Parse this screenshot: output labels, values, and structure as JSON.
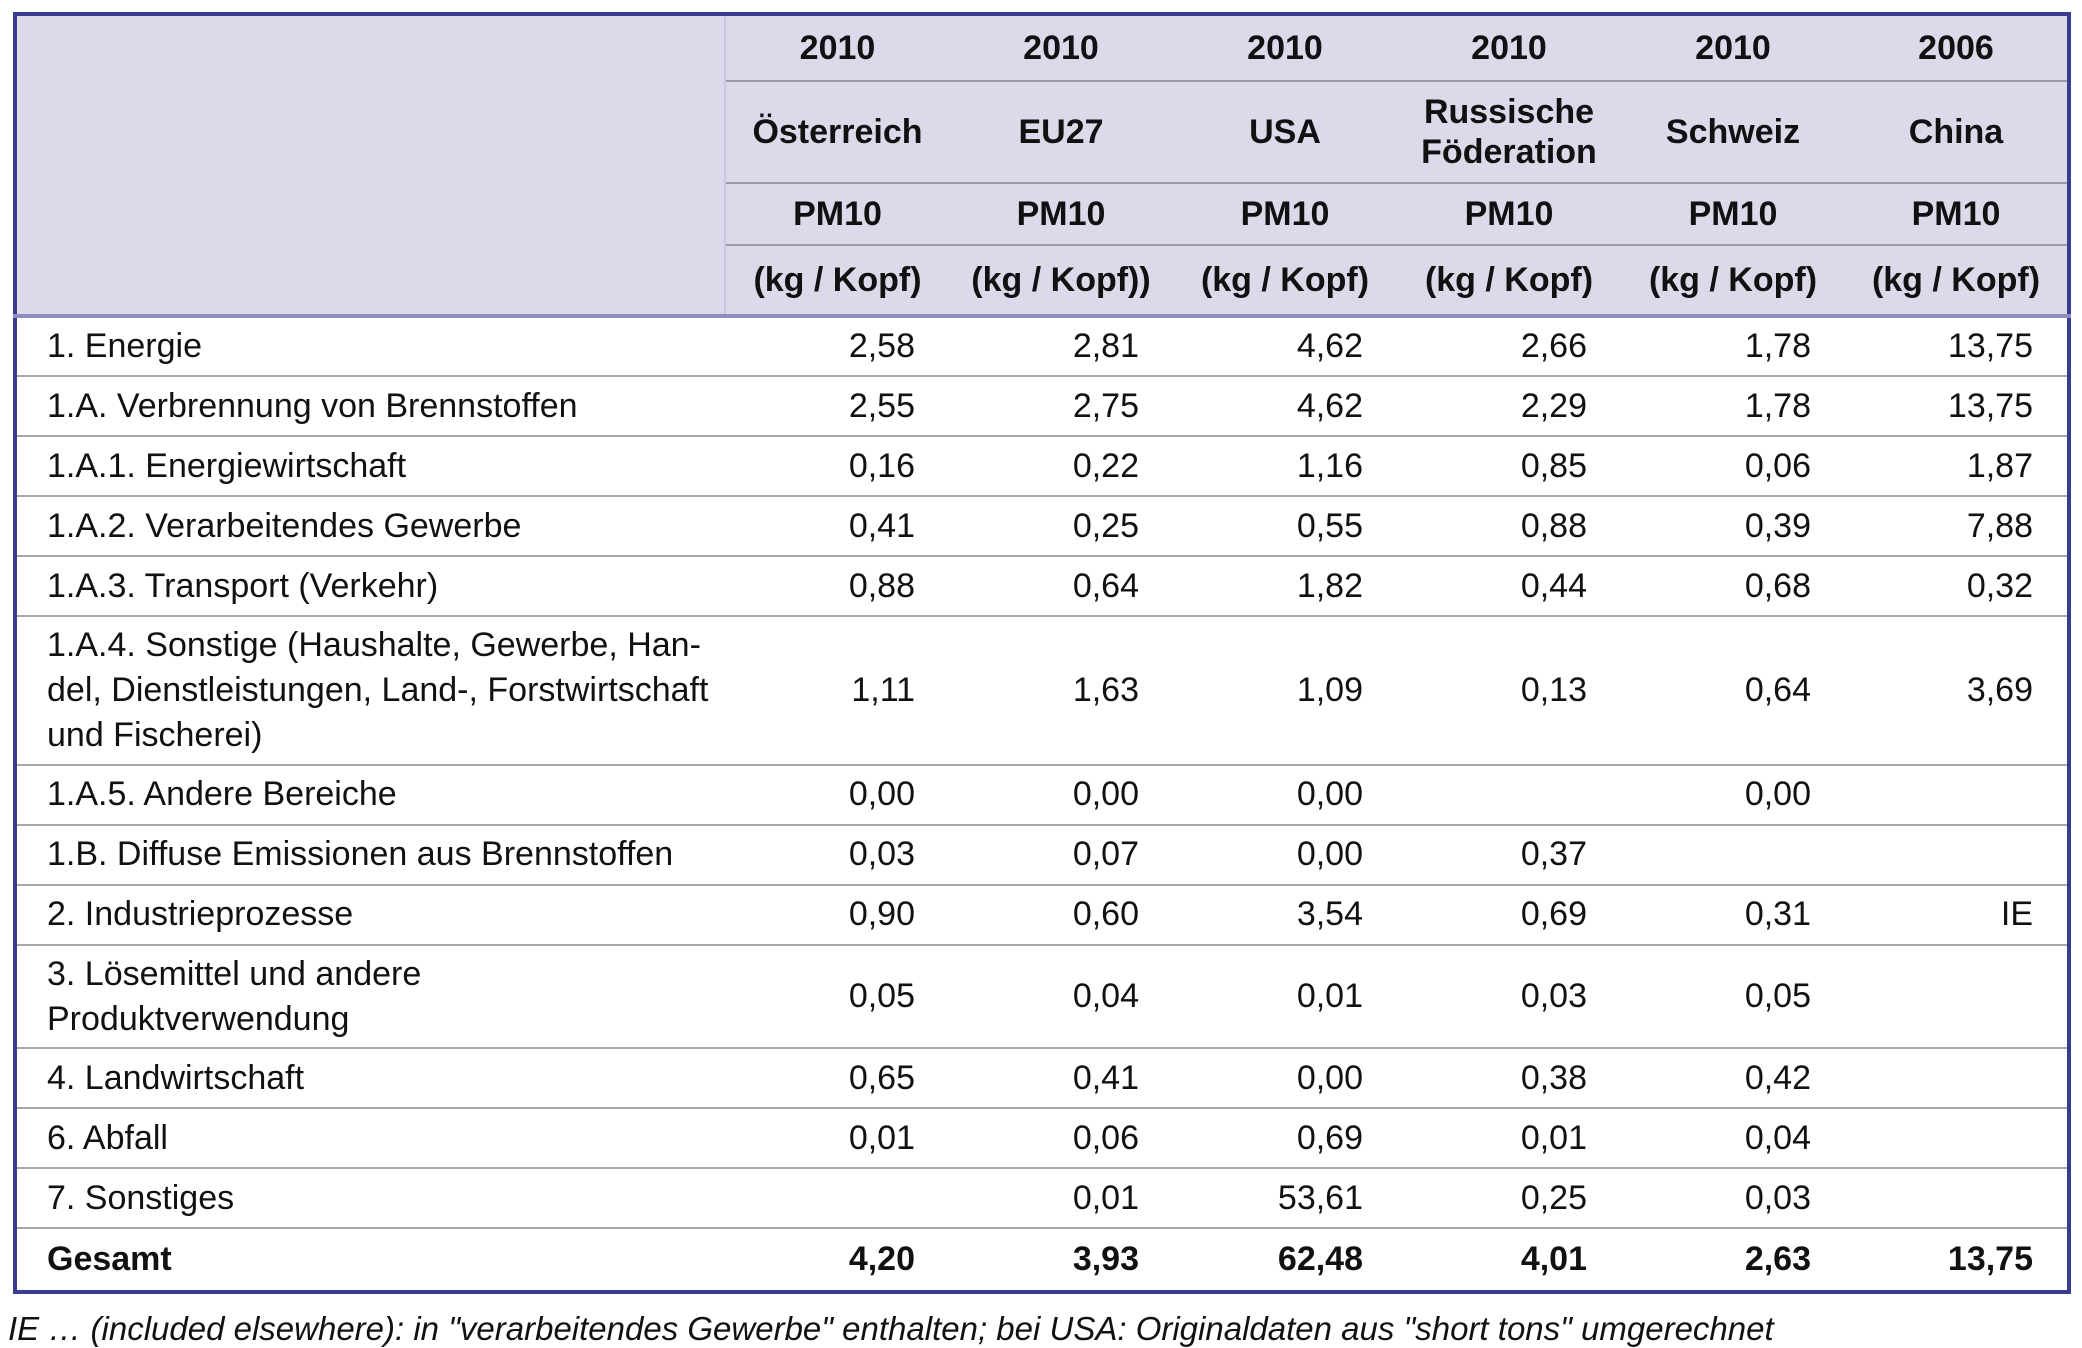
{
  "table": {
    "header": {
      "years": [
        "2010",
        "2010",
        "2010",
        "2010",
        "2010",
        "2006"
      ],
      "countries": [
        "Österreich",
        "EU27",
        "USA",
        "Russische Föderation",
        "Schweiz",
        "China"
      ],
      "pollutant": [
        "PM10",
        "PM10",
        "PM10",
        "PM10",
        "PM10",
        "PM10"
      ],
      "units": [
        "(kg / Kopf)",
        "(kg / Kopf))",
        "(kg / Kopf)",
        "(kg / Kopf)",
        "(kg / Kopf)",
        "(kg / Kopf)"
      ]
    },
    "rows": [
      {
        "label": "1. Energie",
        "values": [
          "2,58",
          "2,81",
          "4,62",
          "2,66",
          "1,78",
          "13,75"
        ]
      },
      {
        "label": "1.A. Verbrennung von Brennstoffen",
        "values": [
          "2,55",
          "2,75",
          "4,62",
          "2,29",
          "1,78",
          "13,75"
        ]
      },
      {
        "label": "1.A.1. Energiewirtschaft",
        "values": [
          "0,16",
          "0,22",
          "1,16",
          "0,85",
          "0,06",
          "1,87"
        ]
      },
      {
        "label": "1.A.2. Verarbeitendes Gewerbe",
        "values": [
          "0,41",
          "0,25",
          "0,55",
          "0,88",
          "0,39",
          "7,88"
        ]
      },
      {
        "label": "1.A.3. Transport (Verkehr)",
        "values": [
          "0,88",
          "0,64",
          "1,82",
          "0,44",
          "0,68",
          "0,32"
        ]
      },
      {
        "label": "1.A.4. Sonstige (Haushalte, Gewerbe, Han-\ndel, Dienstleistungen, Land-, Forstwirtschaft\nund Fischerei)",
        "values": [
          "1,11",
          "1,63",
          "1,09",
          "0,13",
          "0,64",
          "3,69"
        ]
      },
      {
        "label": "1.A.5. Andere Bereiche",
        "values": [
          "0,00",
          "0,00",
          "0,00",
          "",
          "0,00",
          ""
        ]
      },
      {
        "label": "1.B. Diffuse Emissionen aus Brennstoffen",
        "values": [
          "0,03",
          "0,07",
          "0,00",
          "0,37",
          "",
          ""
        ]
      },
      {
        "label": "2. Industrieprozesse",
        "values": [
          "0,90",
          "0,60",
          "3,54",
          "0,69",
          "0,31",
          "IE"
        ]
      },
      {
        "label": "3. Lösemittel und andere Produktverwendung",
        "values": [
          "0,05",
          "0,04",
          "0,01",
          "0,03",
          "0,05",
          ""
        ]
      },
      {
        "label": "4. Landwirtschaft",
        "values": [
          "0,65",
          "0,41",
          "0,00",
          "0,38",
          "0,42",
          ""
        ]
      },
      {
        "label": "6. Abfall",
        "values": [
          "0,01",
          "0,06",
          "0,69",
          "0,01",
          "0,04",
          ""
        ]
      },
      {
        "label": "7. Sonstiges",
        "values": [
          "",
          "0,01",
          "53,61",
          "0,25",
          "0,03",
          ""
        ]
      },
      {
        "label": "Gesamt",
        "values": [
          "4,20",
          "3,93",
          "62,48",
          "4,01",
          "2,63",
          "13,75"
        ]
      }
    ],
    "footnote": "IE … (included elsewhere): in \"verarbeitendes Gewerbe\" enthalten; bei USA: Originaldaten aus \"short tons\" umgerechnet"
  }
}
